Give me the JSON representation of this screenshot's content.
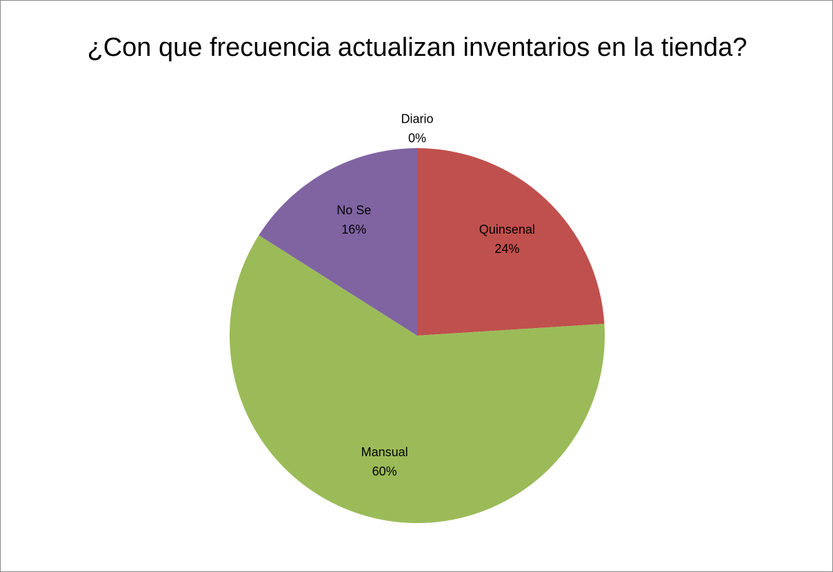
{
  "chart_data": {
    "type": "pie",
    "title": "¿Con que frecuencia actualizan inventarios en la tienda?",
    "categories": [
      "Diario",
      "Quinsenal",
      "Mansual",
      "No Se"
    ],
    "values": [
      0,
      24,
      60,
      16
    ],
    "value_labels": [
      "0%",
      "24%",
      "60%",
      "16%"
    ],
    "colors": [
      "#4f81bd",
      "#c0504d",
      "#9bbb59",
      "#8064a2"
    ]
  }
}
